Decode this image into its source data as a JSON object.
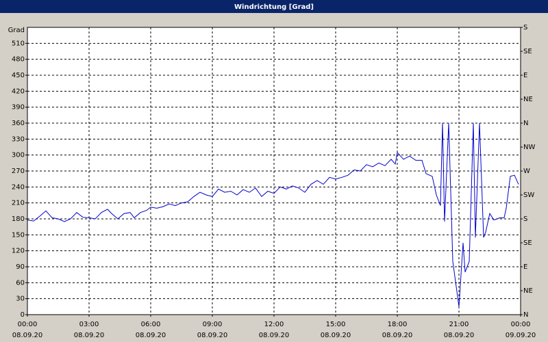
{
  "chart_data": {
    "type": "line",
    "title": "Windrichtung [Grad]",
    "y_label": "Grad",
    "x": [
      0,
      0.3,
      0.6,
      0.9,
      1.2,
      1.5,
      1.8,
      2.1,
      2.4,
      2.7,
      3,
      3.3,
      3.6,
      3.9,
      4.1,
      4.4,
      4.7,
      5,
      5.2,
      5.5,
      5.8,
      6,
      6.3,
      6.6,
      6.9,
      7.2,
      7.5,
      7.8,
      8.1,
      8.4,
      8.7,
      9,
      9.3,
      9.6,
      9.9,
      10.2,
      10.5,
      10.8,
      11.1,
      11.4,
      11.7,
      12,
      12.3,
      12.6,
      12.9,
      13.2,
      13.5,
      13.8,
      14.1,
      14.4,
      14.7,
      15,
      15.3,
      15.6,
      15.9,
      16.2,
      16.5,
      16.8,
      17.1,
      17.4,
      17.7,
      17.9,
      18,
      18.3,
      18.6,
      18.9,
      19.2,
      19.4,
      19.7,
      19.9,
      20.1,
      20.2,
      20.3,
      20.5,
      20.7,
      21,
      21.2,
      21.3,
      21.5,
      21.7,
      21.8,
      22,
      22.2,
      22.3,
      22.5,
      22.7,
      23,
      23.2,
      23.3,
      23.5,
      23.7,
      23.9
    ],
    "series": [
      {
        "name": "Windrichtung",
        "color": "#0000cc",
        "values": [
          178,
          176,
          185,
          195,
          182,
          180,
          175,
          180,
          192,
          183,
          182,
          180,
          192,
          198,
          190,
          180,
          190,
          192,
          182,
          192,
          196,
          202,
          200,
          203,
          208,
          205,
          210,
          212,
          222,
          230,
          225,
          222,
          236,
          230,
          232,
          225,
          235,
          230,
          238,
          222,
          232,
          228,
          240,
          236,
          242,
          238,
          230,
          245,
          252,
          245,
          258,
          255,
          258,
          262,
          272,
          270,
          282,
          278,
          285,
          280,
          292,
          283,
          305,
          292,
          298,
          290,
          290,
          265,
          260,
          225,
          205,
          360,
          175,
          360,
          100,
          15,
          135,
          80,
          100,
          360,
          145,
          360,
          145,
          155,
          190,
          178,
          182,
          182,
          200,
          260,
          262,
          245
        ]
      }
    ],
    "xlim": [
      0,
      24
    ],
    "xticks": [
      {
        "value": 0,
        "label": "00:00\n08.09.20"
      },
      {
        "value": 3,
        "label": "03:00\n08.09.20"
      },
      {
        "value": 6,
        "label": "06:00\n08.09.20"
      },
      {
        "value": 9,
        "label": "09:00\n08.09.20"
      },
      {
        "value": 12,
        "label": "12:00\n08.09.20"
      },
      {
        "value": 15,
        "label": "15:00\n08.09.20"
      },
      {
        "value": 18,
        "label": "18:00\n08.09.20"
      },
      {
        "value": 21,
        "label": "21:00\n08.09.20"
      },
      {
        "value": 24,
        "label": "00:00\n09.09.20"
      }
    ],
    "ylim": [
      0,
      540
    ],
    "yticks": [
      0,
      30,
      60,
      90,
      120,
      150,
      180,
      210,
      240,
      270,
      300,
      330,
      360,
      390,
      420,
      450,
      480,
      510
    ],
    "y2lim": [
      0,
      540
    ],
    "y2ticks": [
      {
        "value": 0,
        "label": "N"
      },
      {
        "value": 45,
        "label": "NE"
      },
      {
        "value": 90,
        "label": "E"
      },
      {
        "value": 135,
        "label": "SE"
      },
      {
        "value": 180,
        "label": "S"
      },
      {
        "value": 225,
        "label": "SW"
      },
      {
        "value": 270,
        "label": "W"
      },
      {
        "value": 315,
        "label": "NW"
      },
      {
        "value": 360,
        "label": "N"
      },
      {
        "value": 405,
        "label": "NE"
      },
      {
        "value": 450,
        "label": "E"
      },
      {
        "value": 495,
        "label": "SE"
      },
      {
        "value": 540,
        "label": "S"
      }
    ],
    "grid": true
  }
}
